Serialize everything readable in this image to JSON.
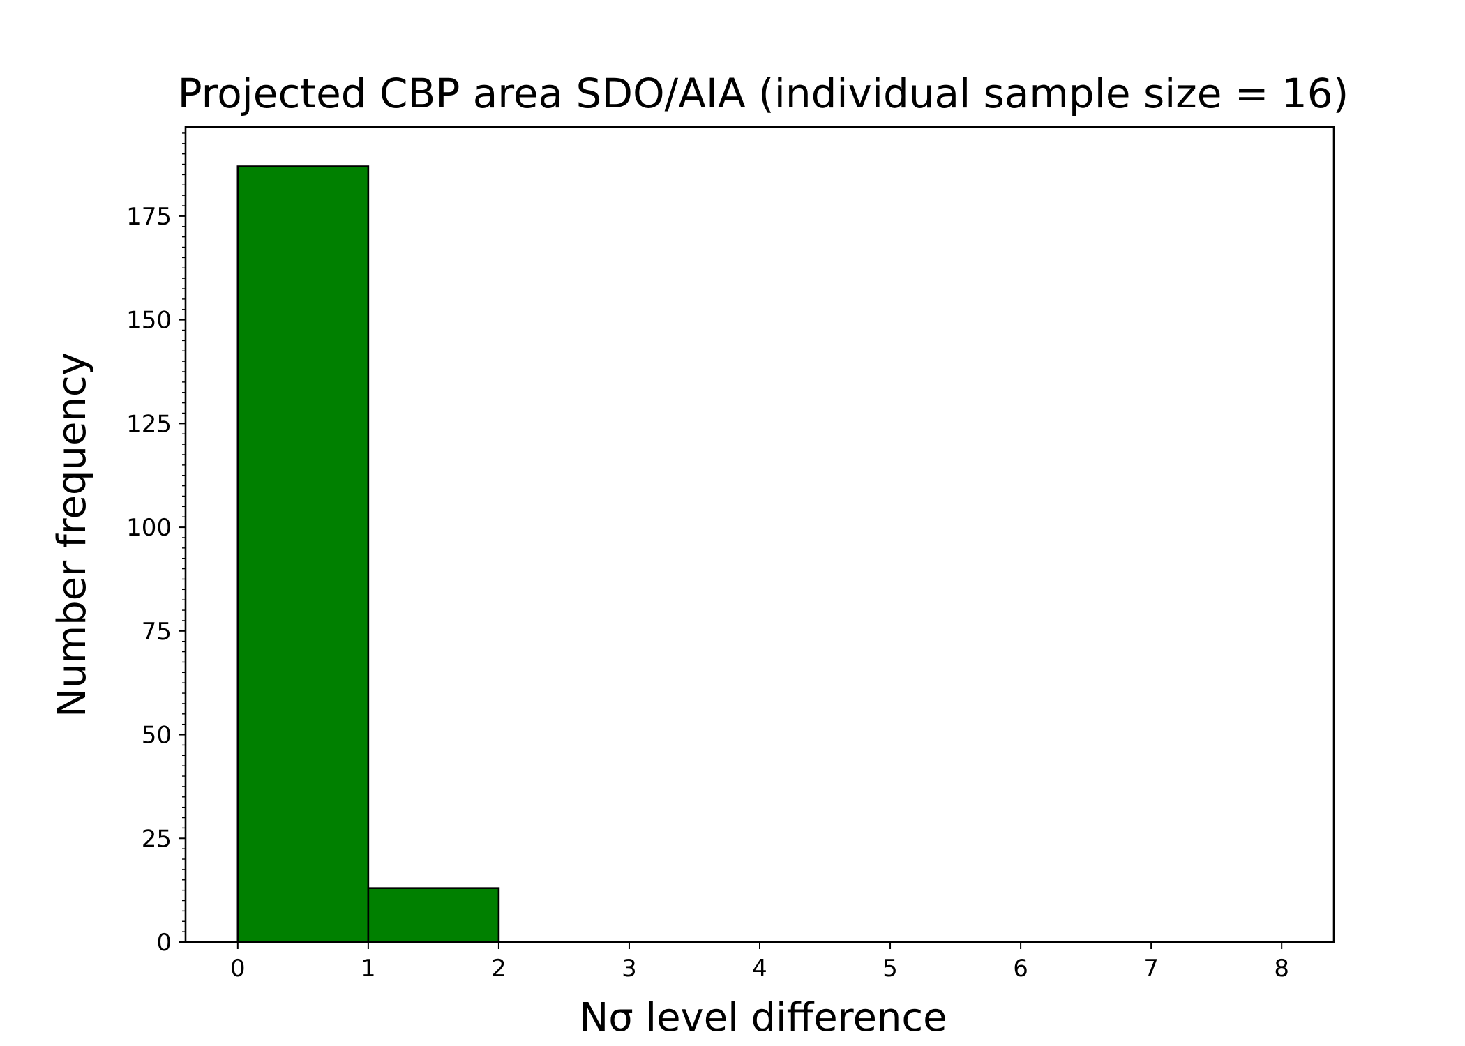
{
  "chart_data": {
    "type": "bar",
    "title": "Projected CBP area SDO/AIA (individual sample size = 16)",
    "xlabel": "Nσ level difference",
    "ylabel": "Number frequency",
    "bin_edges": [
      0,
      1,
      2,
      3,
      4,
      5,
      6,
      7,
      8
    ],
    "values": [
      187,
      13,
      0,
      0,
      0,
      0,
      0,
      0
    ],
    "bar_color": "#008000",
    "edge_color": "#000000",
    "xlim": [
      -0.4,
      8.4
    ],
    "ylim": [
      0,
      196.5
    ],
    "xticks": [
      0,
      1,
      2,
      3,
      4,
      5,
      6,
      7,
      8
    ],
    "yticks": [
      0,
      25,
      50,
      75,
      100,
      125,
      150,
      175
    ],
    "y_minor_tick_step": 2.5,
    "grid": false
  }
}
